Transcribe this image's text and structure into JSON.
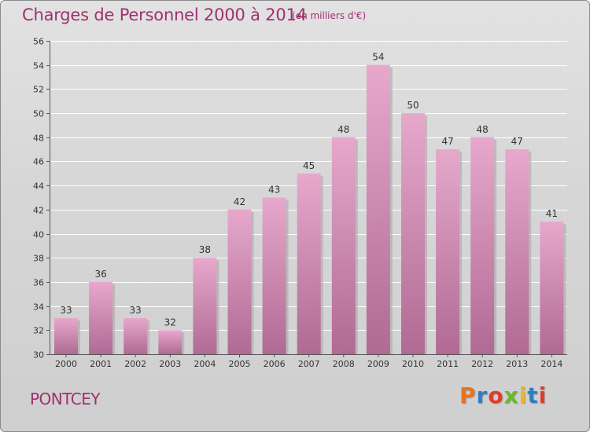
{
  "header": {
    "title": "Charges de Personnel 2000 à 2014",
    "subtitle": "(en milliers d'€)"
  },
  "footer": {
    "city": "PONTCEY",
    "logo_text": "Proxiti",
    "logo_colors": [
      "#e8731c",
      "#2d7fc1",
      "#e23b2a",
      "#6bb82b",
      "#f0b51a",
      "#2d7fc1",
      "#e23b2a"
    ]
  },
  "colors": {
    "bar_top": "#e7a8cc",
    "bar_bottom": "#b06a93",
    "bar_shadow": "#a8a8a8",
    "accent": "#a03070"
  },
  "chart_data": {
    "type": "bar",
    "title": "Charges de Personnel 2000 à 2014",
    "subtitle": "(en milliers d'€)",
    "categories": [
      "2000",
      "2001",
      "2002",
      "2003",
      "2004",
      "2005",
      "2006",
      "2007",
      "2008",
      "2009",
      "2010",
      "2011",
      "2012",
      "2013",
      "2014"
    ],
    "values": [
      33,
      36,
      33,
      32,
      38,
      42,
      43,
      45,
      48,
      54,
      50,
      47,
      48,
      47,
      41
    ],
    "ylim": [
      30,
      56
    ],
    "yticks": [
      30,
      32,
      34,
      36,
      38,
      40,
      42,
      44,
      46,
      48,
      50,
      52,
      54,
      56
    ],
    "grid": true,
    "data_labels": true
  }
}
